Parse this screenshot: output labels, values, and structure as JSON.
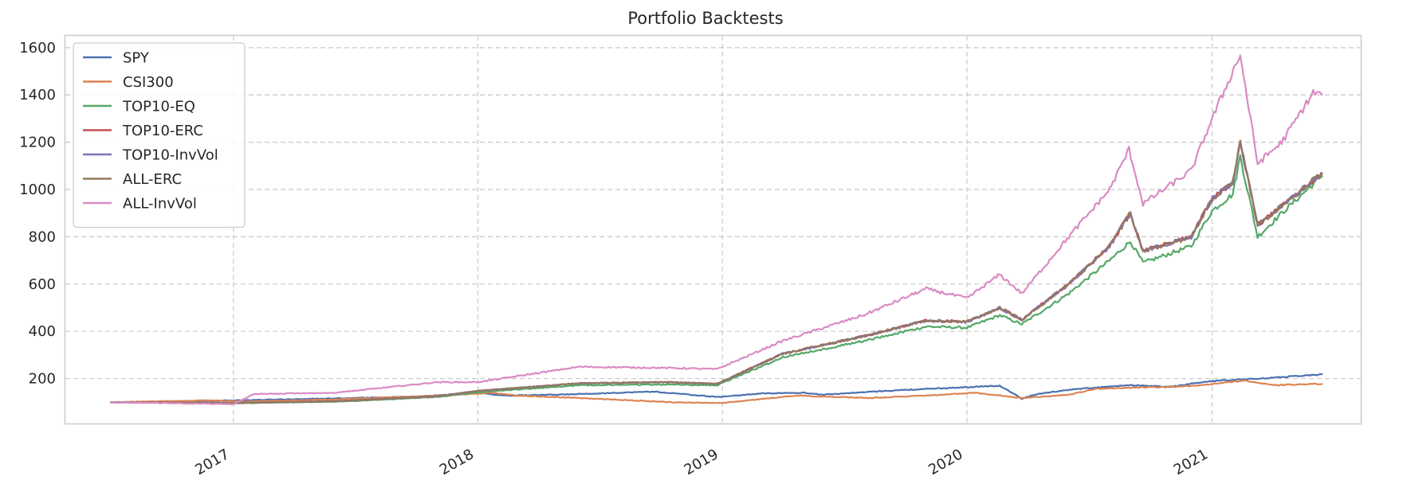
{
  "chart_data": {
    "type": "line",
    "title": "Portfolio Backtests",
    "xlabel": "",
    "ylabel": "",
    "x_type": "date",
    "xlim": [
      "2016-04-25",
      "2021-08-11"
    ],
    "ylim": [
      10,
      1650
    ],
    "x_ticks": [
      {
        "value": "2017-01-01",
        "label": "2017"
      },
      {
        "value": "2018-01-01",
        "label": "2018"
      },
      {
        "value": "2019-01-01",
        "label": "2019"
      },
      {
        "value": "2020-01-01",
        "label": "2020"
      },
      {
        "value": "2021-01-01",
        "label": "2021"
      }
    ],
    "y_ticks": [
      200,
      400,
      600,
      800,
      1000,
      1200,
      1400,
      1600
    ],
    "grid": true,
    "grid_style": "dashed",
    "legend_position": "top-left",
    "series": [
      {
        "name": "SPY",
        "color": "#4c72b0",
        "points": [
          [
            "2016-07-01",
            100
          ],
          [
            "2016-10-01",
            103
          ],
          [
            "2017-01-01",
            108
          ],
          [
            "2017-04-01",
            113
          ],
          [
            "2017-07-01",
            118
          ],
          [
            "2017-10-01",
            124
          ],
          [
            "2018-01-01",
            140
          ],
          [
            "2018-02-10",
            128
          ],
          [
            "2018-05-01",
            132
          ],
          [
            "2018-09-20",
            145
          ],
          [
            "2018-12-24",
            122
          ],
          [
            "2019-03-01",
            137
          ],
          [
            "2019-05-01",
            140
          ],
          [
            "2019-06-01",
            132
          ],
          [
            "2019-09-01",
            148
          ],
          [
            "2019-12-01",
            160
          ],
          [
            "2020-02-19",
            170
          ],
          [
            "2020-03-23",
            115
          ],
          [
            "2020-04-15",
            135
          ],
          [
            "2020-06-08",
            155
          ],
          [
            "2020-09-01",
            172
          ],
          [
            "2020-10-30",
            165
          ],
          [
            "2020-12-31",
            190
          ],
          [
            "2021-03-01",
            198
          ],
          [
            "2021-06-15",
            218
          ]
        ]
      },
      {
        "name": "CSI300",
        "color": "#dd8452",
        "points": [
          [
            "2016-07-01",
            100
          ],
          [
            "2016-11-30",
            108
          ],
          [
            "2017-01-15",
            103
          ],
          [
            "2017-06-01",
            112
          ],
          [
            "2017-11-20",
            130
          ],
          [
            "2018-01-24",
            140
          ],
          [
            "2018-03-01",
            128
          ],
          [
            "2018-06-01",
            118
          ],
          [
            "2018-10-18",
            100
          ],
          [
            "2019-01-03",
            97
          ],
          [
            "2019-04-19",
            128
          ],
          [
            "2019-08-06",
            118
          ],
          [
            "2019-11-01",
            128
          ],
          [
            "2020-01-13",
            140
          ],
          [
            "2020-03-23",
            118
          ],
          [
            "2020-06-01",
            132
          ],
          [
            "2020-07-15",
            158
          ],
          [
            "2020-12-01",
            168
          ],
          [
            "2021-02-18",
            192
          ],
          [
            "2021-04-01",
            172
          ],
          [
            "2021-06-15",
            178
          ]
        ]
      },
      {
        "name": "TOP10-EQ",
        "color": "#55a868",
        "points": [
          [
            "2016-07-01",
            100
          ],
          [
            "2017-01-01",
            96
          ],
          [
            "2017-06-01",
            102
          ],
          [
            "2017-11-01",
            122
          ],
          [
            "2018-01-01",
            142
          ],
          [
            "2018-06-01",
            172
          ],
          [
            "2018-10-15",
            175
          ],
          [
            "2018-12-24",
            172
          ],
          [
            "2019-04-01",
            290
          ],
          [
            "2019-08-01",
            360
          ],
          [
            "2019-11-01",
            420
          ],
          [
            "2020-01-01",
            415
          ],
          [
            "2020-02-19",
            468
          ],
          [
            "2020-03-23",
            430
          ],
          [
            "2020-06-01",
            560
          ],
          [
            "2020-08-01",
            700
          ],
          [
            "2020-09-01",
            780
          ],
          [
            "2020-09-20",
            690
          ],
          [
            "2020-12-01",
            760
          ],
          [
            "2021-01-01",
            910
          ],
          [
            "2021-02-01",
            980
          ],
          [
            "2021-02-12",
            1140
          ],
          [
            "2021-03-10",
            800
          ],
          [
            "2021-04-15",
            900
          ],
          [
            "2021-06-15",
            1060
          ]
        ]
      },
      {
        "name": "TOP10-ERC",
        "color": "#c44e52",
        "points": [
          [
            "2016-07-01",
            100
          ],
          [
            "2017-01-01",
            97
          ],
          [
            "2017-06-01",
            104
          ],
          [
            "2017-11-01",
            125
          ],
          [
            "2018-01-01",
            148
          ],
          [
            "2018-06-01",
            180
          ],
          [
            "2018-10-15",
            185
          ],
          [
            "2018-12-24",
            178
          ],
          [
            "2019-04-01",
            305
          ],
          [
            "2019-08-01",
            380
          ],
          [
            "2019-11-01",
            445
          ],
          [
            "2020-01-01",
            440
          ],
          [
            "2020-02-19",
            500
          ],
          [
            "2020-03-23",
            450
          ],
          [
            "2020-06-01",
            600
          ],
          [
            "2020-08-01",
            760
          ],
          [
            "2020-09-01",
            900
          ],
          [
            "2020-09-20",
            740
          ],
          [
            "2020-12-01",
            800
          ],
          [
            "2021-01-01",
            960
          ],
          [
            "2021-02-01",
            1030
          ],
          [
            "2021-02-12",
            1200
          ],
          [
            "2021-03-10",
            850
          ],
          [
            "2021-04-15",
            930
          ],
          [
            "2021-06-15",
            1070
          ]
        ]
      },
      {
        "name": "TOP10-InvVol",
        "color": "#8172b3",
        "points": [
          [
            "2016-07-01",
            100
          ],
          [
            "2017-01-01",
            97
          ],
          [
            "2017-06-01",
            104
          ],
          [
            "2017-11-01",
            125
          ],
          [
            "2018-01-01",
            148
          ],
          [
            "2018-06-01",
            180
          ],
          [
            "2018-10-15",
            185
          ],
          [
            "2018-12-24",
            178
          ],
          [
            "2019-04-01",
            305
          ],
          [
            "2019-08-01",
            380
          ],
          [
            "2019-11-01",
            445
          ],
          [
            "2020-01-01",
            440
          ],
          [
            "2020-02-19",
            500
          ],
          [
            "2020-03-23",
            450
          ],
          [
            "2020-06-01",
            600
          ],
          [
            "2020-08-01",
            760
          ],
          [
            "2020-09-01",
            900
          ],
          [
            "2020-09-20",
            740
          ],
          [
            "2020-12-01",
            800
          ],
          [
            "2021-01-01",
            960
          ],
          [
            "2021-02-01",
            1030
          ],
          [
            "2021-02-12",
            1200
          ],
          [
            "2021-03-10",
            850
          ],
          [
            "2021-04-15",
            930
          ],
          [
            "2021-06-15",
            1070
          ]
        ]
      },
      {
        "name": "ALL-ERC",
        "color": "#937860",
        "points": [
          [
            "2016-07-01",
            100
          ],
          [
            "2017-01-01",
            97
          ],
          [
            "2017-06-01",
            104
          ],
          [
            "2017-11-01",
            125
          ],
          [
            "2018-01-01",
            148
          ],
          [
            "2018-06-01",
            180
          ],
          [
            "2018-10-15",
            185
          ],
          [
            "2018-12-24",
            178
          ],
          [
            "2019-04-01",
            305
          ],
          [
            "2019-08-01",
            380
          ],
          [
            "2019-11-01",
            445
          ],
          [
            "2020-01-01",
            440
          ],
          [
            "2020-02-19",
            500
          ],
          [
            "2020-03-23",
            450
          ],
          [
            "2020-06-01",
            600
          ],
          [
            "2020-08-01",
            760
          ],
          [
            "2020-09-01",
            900
          ],
          [
            "2020-09-20",
            740
          ],
          [
            "2020-12-01",
            800
          ],
          [
            "2021-01-01",
            960
          ],
          [
            "2021-02-01",
            1030
          ],
          [
            "2021-02-12",
            1200
          ],
          [
            "2021-03-10",
            850
          ],
          [
            "2021-04-15",
            930
          ],
          [
            "2021-06-15",
            1070
          ]
        ]
      },
      {
        "name": "ALL-InvVol",
        "color": "#da8bc3",
        "points": [
          [
            "2016-07-01",
            100
          ],
          [
            "2017-01-01",
            92
          ],
          [
            "2017-02-01",
            135
          ],
          [
            "2017-06-01",
            140
          ],
          [
            "2017-11-01",
            185
          ],
          [
            "2018-01-01",
            185
          ],
          [
            "2018-06-01",
            250
          ],
          [
            "2018-10-15",
            245
          ],
          [
            "2018-12-24",
            240
          ],
          [
            "2019-04-01",
            360
          ],
          [
            "2019-08-01",
            470
          ],
          [
            "2019-11-01",
            580
          ],
          [
            "2020-01-01",
            540
          ],
          [
            "2020-02-19",
            640
          ],
          [
            "2020-03-23",
            560
          ],
          [
            "2020-06-01",
            800
          ],
          [
            "2020-08-01",
            1000
          ],
          [
            "2020-08-30",
            1170
          ],
          [
            "2020-09-20",
            940
          ],
          [
            "2020-12-01",
            1080
          ],
          [
            "2021-01-01",
            1300
          ],
          [
            "2021-02-12",
            1570
          ],
          [
            "2021-03-10",
            1110
          ],
          [
            "2021-04-15",
            1200
          ],
          [
            "2021-06-01",
            1410
          ],
          [
            "2021-06-15",
            1400
          ]
        ]
      }
    ]
  }
}
